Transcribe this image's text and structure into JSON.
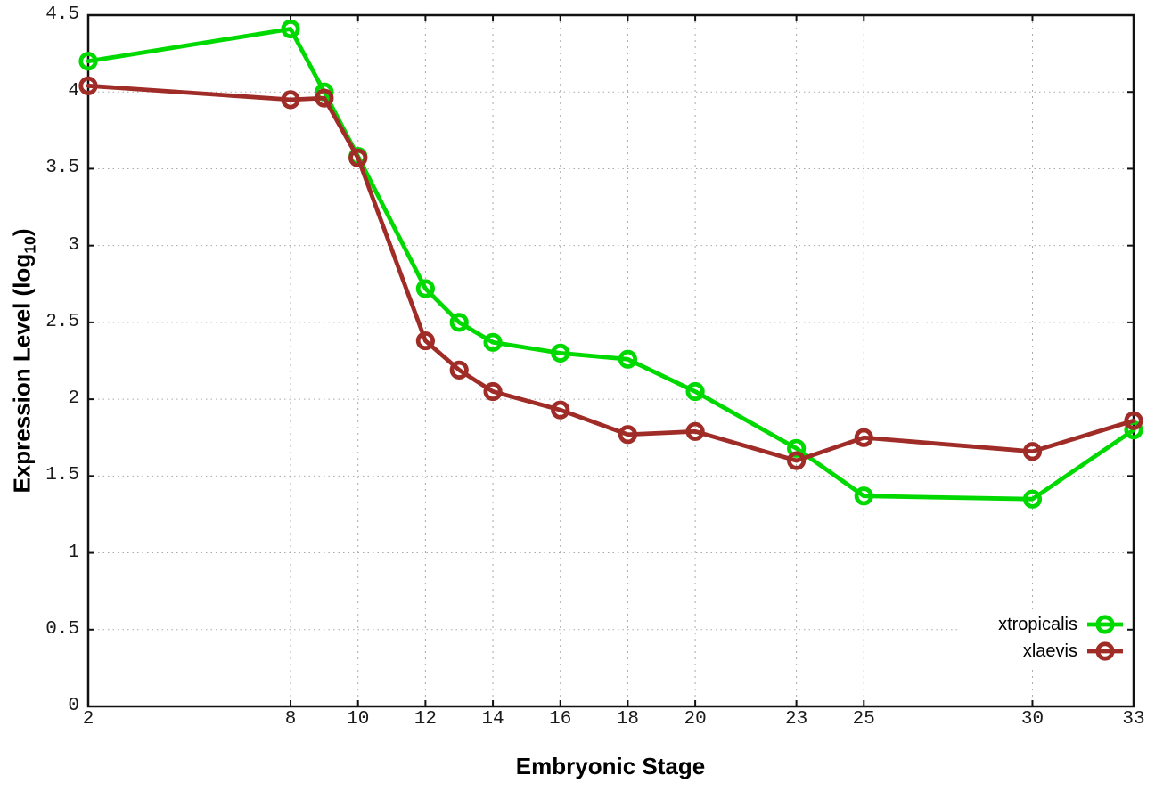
{
  "chart_data": {
    "type": "line",
    "xlabel": "Embryonic Stage",
    "ylabel_prefix": "Expression Level (log",
    "ylabel_sub": "10",
    "ylabel_suffix": ")",
    "x": [
      2,
      8,
      9,
      10,
      12,
      13,
      14,
      16,
      18,
      20,
      23,
      25,
      30,
      33
    ],
    "series": [
      {
        "name": "xtropicalis",
        "color": "#00d900",
        "values": [
          4.2,
          4.41,
          4.0,
          3.58,
          2.72,
          2.5,
          2.37,
          2.3,
          2.26,
          2.05,
          1.68,
          1.37,
          1.35,
          1.8
        ]
      },
      {
        "name": "xlaevis",
        "color": "#a02c28",
        "values": [
          4.04,
          3.95,
          3.96,
          3.57,
          2.38,
          2.19,
          2.05,
          1.93,
          1.77,
          1.79,
          1.6,
          1.75,
          1.66,
          1.86
        ]
      }
    ],
    "xlim": [
      2,
      33
    ],
    "ylim": [
      0,
      4.5
    ],
    "xticks": [
      2,
      8,
      10,
      12,
      14,
      16,
      18,
      20,
      23,
      25,
      30,
      33
    ],
    "yticks": [
      0,
      0.5,
      1,
      1.5,
      2,
      2.5,
      3,
      3.5,
      4,
      4.5
    ],
    "ytick_labels": [
      "0",
      "0.5",
      "1",
      "1.5",
      "2",
      "2.5",
      "3",
      "3.5",
      "4",
      "4.5"
    ],
    "grid": true,
    "legend_position": "bottom-right",
    "marker": "open-circle",
    "grid_color": "#a9a9a9",
    "border_color": "#111111"
  }
}
